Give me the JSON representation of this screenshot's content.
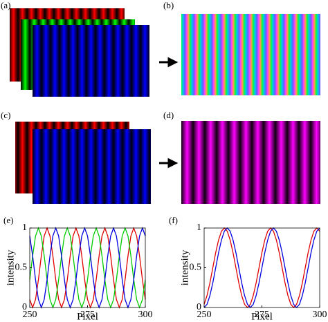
{
  "panel_labels": [
    "(a)",
    "(b)",
    "(c)",
    "(d)"
  ],
  "chart_data": [
    {
      "type": "line",
      "panel": "(e)",
      "xlabel": "Pixel",
      "ylabel": "intensity",
      "xlim": [
        250,
        300
      ],
      "xticks": [
        250,
        275,
        300
      ],
      "ylim": [
        0,
        1
      ],
      "yticks": [
        0,
        0.5,
        1
      ],
      "x": [
        250,
        251.25,
        252.5,
        253.75,
        255,
        256.25,
        257.5,
        258.75,
        260,
        261.25,
        262.5,
        263.75,
        265,
        266.25,
        267.5,
        268.75,
        270,
        271.25,
        272.5,
        273.75,
        275,
        276.25,
        277.5,
        278.75,
        280,
        281.25,
        282.5,
        283.75,
        285,
        286.25,
        287.5,
        288.75,
        290,
        291.25,
        292.5,
        293.75,
        295,
        296.25,
        297.5,
        298.75,
        300
      ],
      "series": [
        {
          "color": "#e00000",
          "values": [
            0.1,
            0,
            0.1,
            0.35,
            0.65,
            0.9,
            1,
            0.9,
            0.65,
            0.35,
            0.1,
            0,
            0.1,
            0.35,
            0.65,
            0.9,
            1,
            0.9,
            0.65,
            0.35,
            0.1,
            0,
            0.1,
            0.35,
            0.65,
            0.9,
            1,
            0.9,
            0.65,
            0.35,
            0.1,
            0,
            0.1,
            0.35,
            0.65,
            0.9,
            1,
            0.9,
            0.65,
            0.35,
            0.1
          ]
        },
        {
          "color": "#00cc00",
          "values": [
            0.35,
            0.65,
            0.9,
            1,
            0.9,
            0.65,
            0.35,
            0.1,
            0,
            0.1,
            0.35,
            0.65,
            0.9,
            1,
            0.9,
            0.65,
            0.35,
            0.1,
            0,
            0.1,
            0.35,
            0.65,
            0.9,
            1,
            0.9,
            0.65,
            0.35,
            0.1,
            0,
            0.1,
            0.35,
            0.65,
            0.9,
            1,
            0.9,
            0.65,
            0.35,
            0.1,
            0,
            0.1,
            0.35
          ]
        },
        {
          "color": "#0000e0",
          "values": [
            0.9,
            0.65,
            0.35,
            0.1,
            0,
            0.1,
            0.35,
            0.65,
            0.9,
            1,
            0.9,
            0.65,
            0.35,
            0.1,
            0,
            0.1,
            0.35,
            0.65,
            0.9,
            1,
            0.9,
            0.65,
            0.35,
            0.1,
            0,
            0.1,
            0.35,
            0.65,
            0.9,
            1,
            0.9,
            0.65,
            0.35,
            0.1,
            0,
            0.1,
            0.35,
            0.65,
            0.9,
            1,
            0.9
          ]
        }
      ]
    },
    {
      "type": "line",
      "panel": "(f)",
      "xlabel": "Pixel",
      "ylabel": "intensity",
      "xlim": [
        250,
        300
      ],
      "xticks": [
        250,
        275,
        300
      ],
      "ylim": [
        0,
        1
      ],
      "yticks": [
        0,
        0.5,
        1
      ],
      "x": [
        250,
        251.25,
        252.5,
        253.75,
        255,
        256.25,
        257.5,
        258.75,
        260,
        261.25,
        262.5,
        263.75,
        265,
        266.25,
        267.5,
        268.75,
        270,
        271.25,
        272.5,
        273.75,
        275,
        276.25,
        277.5,
        278.75,
        280,
        281.25,
        282.5,
        283.75,
        285,
        286.25,
        287.5,
        288.75,
        290,
        291.25,
        292.5,
        293.75,
        295,
        296.25,
        297.5,
        298.75,
        300
      ],
      "series": [
        {
          "color": "#e00000",
          "values": [
            0.04,
            0.15,
            0.31,
            0.5,
            0.69,
            0.85,
            0.96,
            1,
            0.96,
            0.85,
            0.69,
            0.5,
            0.31,
            0.15,
            0.04,
            0,
            0.04,
            0.15,
            0.31,
            0.5,
            0.69,
            0.85,
            0.96,
            1,
            0.96,
            0.85,
            0.69,
            0.5,
            0.31,
            0.15,
            0.04,
            0,
            0.04,
            0.15,
            0.31,
            0.5,
            0.69,
            0.85,
            0.96,
            1,
            0.96
          ]
        },
        {
          "color": "#0000e0",
          "values": [
            0,
            0.04,
            0.15,
            0.31,
            0.5,
            0.69,
            0.85,
            0.96,
            1,
            0.96,
            0.85,
            0.69,
            0.5,
            0.31,
            0.15,
            0.04,
            0,
            0.04,
            0.15,
            0.31,
            0.5,
            0.69,
            0.85,
            0.96,
            1,
            0.96,
            0.85,
            0.69,
            0.5,
            0.31,
            0.15,
            0.04,
            0,
            0.04,
            0.15,
            0.31,
            0.5,
            0.69,
            0.85,
            0.96,
            1
          ]
        }
      ]
    }
  ]
}
